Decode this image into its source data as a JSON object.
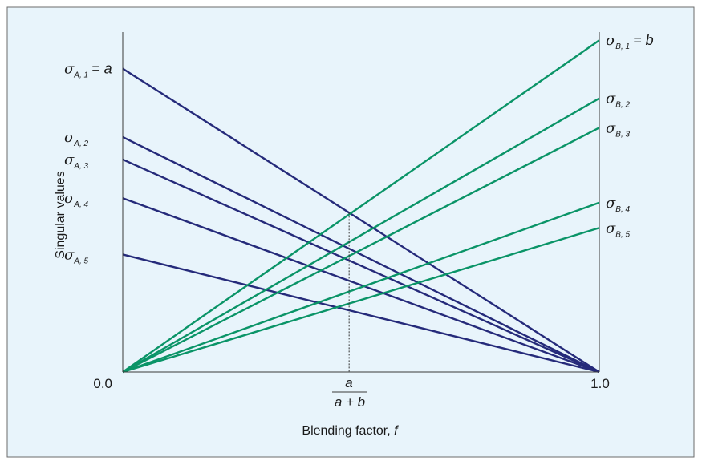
{
  "colors": {
    "background": "#e8f4fb",
    "frame": "#6b6b6b",
    "axis": "#3a3a3a",
    "series_a": "#252a7a",
    "series_b": "#0a9467",
    "guide": "#333333"
  },
  "axes": {
    "x_title": "Blending factor, ",
    "x_title_var": "f",
    "y_title": "Singular values",
    "x_left_tick": "0.0",
    "x_right_tick": "1.0",
    "x_range": [
      0,
      1
    ],
    "y_range": [
      0,
      1
    ],
    "guide_x": 0.475,
    "frac_num": "a",
    "frac_den": "a + b"
  },
  "sigma_symbol": "σ",
  "series_a": [
    {
      "sub": "A, 1",
      "eq": "= a",
      "value": 0.878
    },
    {
      "sub": "A, 2",
      "eq": "",
      "value": 0.68
    },
    {
      "sub": "A, 3",
      "eq": "",
      "value": 0.615
    },
    {
      "sub": "A, 4",
      "eq": "",
      "value": 0.503
    },
    {
      "sub": "A, 5",
      "eq": "",
      "value": 0.34
    }
  ],
  "series_b": [
    {
      "sub": "B, 1",
      "eq": "= b",
      "value": 0.96
    },
    {
      "sub": "B, 2",
      "eq": "",
      "value": 0.792
    },
    {
      "sub": "B, 3",
      "eq": "",
      "value": 0.707
    },
    {
      "sub": "B, 4",
      "eq": "",
      "value": 0.49
    },
    {
      "sub": "B, 5",
      "eq": "",
      "value": 0.417
    }
  ]
}
